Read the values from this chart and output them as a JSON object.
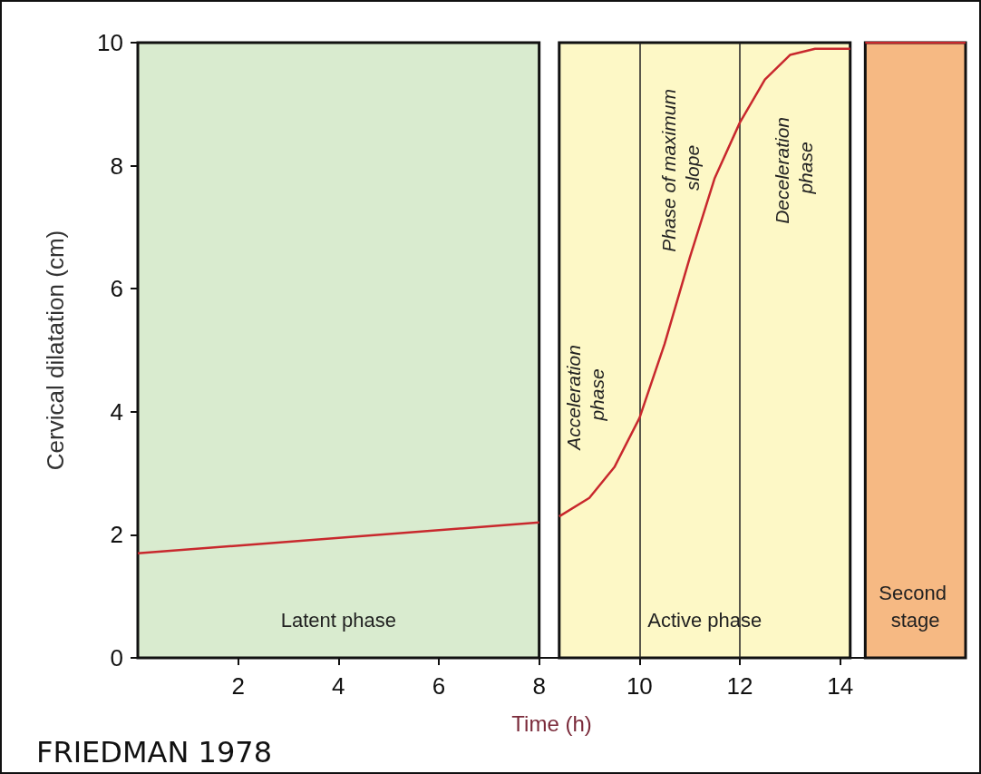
{
  "chart_data": {
    "type": "line",
    "xlabel": "Time (h)",
    "ylabel": "Cervical dilatation (cm)",
    "xlim": [
      0,
      16.5
    ],
    "xticks": [
      2,
      4,
      6,
      8,
      10,
      12,
      14
    ],
    "ylim": [
      0,
      10
    ],
    "yticks": [
      0,
      2,
      4,
      6,
      8,
      10
    ],
    "grid": false,
    "marker": "none",
    "line_style": "solid",
    "series": [
      {
        "color": "#c8282d",
        "x": [
          0,
          8
        ],
        "values": [
          1.7,
          2.2
        ]
      },
      {
        "color": "#c8282d",
        "x": [
          8.4,
          9,
          9.5,
          10,
          10.5,
          11,
          11.5,
          12,
          12.5,
          13,
          13.5,
          14.2
        ],
        "values": [
          2.3,
          2.6,
          3.1,
          3.9,
          5.1,
          6.5,
          7.8,
          8.7,
          9.4,
          9.8,
          9.9,
          9.9
        ]
      },
      {
        "color": "#c8282d",
        "x": [
          14.5,
          16.5
        ],
        "values": [
          10,
          10
        ]
      }
    ],
    "bands": [
      {
        "axis": "x",
        "from": 0,
        "to": 8,
        "label": "Latent phase",
        "color": "#d9ebcf"
      },
      {
        "axis": "x",
        "from": 8.4,
        "to": 14.2,
        "label": "Active phase",
        "color": "#fdf8c6"
      },
      {
        "axis": "x",
        "from": 14.5,
        "to": 16.5,
        "label": "Second stage",
        "color": "#f6b983"
      }
    ],
    "ref_lines": [
      {
        "axis": "x",
        "value": 10,
        "color": "#222222"
      },
      {
        "axis": "x",
        "value": 12,
        "color": "#222222"
      }
    ],
    "annotations": [
      "Acceleration phase",
      "Phase of maximum slope",
      "Deceleration phase",
      "FRIEDMAN 1978"
    ]
  }
}
